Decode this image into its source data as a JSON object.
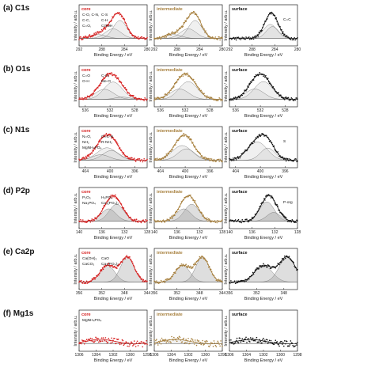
{
  "figure": {
    "conditions": [
      "core",
      "intermediate",
      "surface"
    ],
    "condition_colors": {
      "core": "#d62020",
      "intermediate": "#a8813f",
      "surface": "#111111"
    },
    "ylabel": "Intensity / arb.u.",
    "xlabel": "Binding Energy / eV"
  },
  "chart_data": [
    {
      "type": "line",
      "row": "(a) C1s",
      "x_ticks": [
        "292",
        "288",
        "284",
        "280"
      ],
      "xlim": [
        292,
        280
      ],
      "surface_x_ticks": [
        "292",
        "288",
        "284",
        "280"
      ],
      "components": [
        {
          "label": "C-O, C-N, C-S",
          "center": 286.0,
          "width": 1.4,
          "height": 0.35
        },
        {
          "label": "C-C, C-H",
          "center": 284.8,
          "width": 1.2,
          "height": 0.65
        },
        {
          "label": "C=O, COOH",
          "center": 288.6,
          "width": 1.4,
          "height": 0.14
        },
        {
          "label": "C=C",
          "center": 284.4,
          "width": 1.1,
          "height": 0.55
        }
      ],
      "annotations": {
        "core": [
          "C-O, C-N,",
          "C-S",
          "C-C,",
          "C-H",
          "C=O,",
          "COOH"
        ],
        "surface": [
          "C=C"
        ]
      }
    },
    {
      "type": "line",
      "row": "(b) O1s",
      "x_ticks": [
        "536",
        "532",
        "528"
      ],
      "xlim": [
        537,
        526
      ],
      "components": [
        {
          "label": "C=O",
          "center": 531.5,
          "width": 1.5,
          "height": 0.6
        },
        {
          "label": "C-O, O-H",
          "center": 532.9,
          "width": 1.5,
          "height": 0.35
        },
        {
          "label": "Me-O",
          "center": 530.0,
          "width": 1.2,
          "height": 0.08
        }
      ],
      "annotations": {
        "core": [
          "C=O",
          "C-O,",
          "O-H",
          "Me-O"
        ]
      }
    },
    {
      "type": "line",
      "row": "(c) N1s",
      "x_ticks": [
        "404",
        "400",
        "396"
      ],
      "xlim": [
        405,
        394
      ],
      "components": [
        {
          "label": "N=O, O=C-N",
          "center": 400.5,
          "width": 1.6,
          "height": 0.45
        },
        {
          "label": "NH2, R-NH2",
          "center": 399.8,
          "width": 1.4,
          "height": 0.35
        },
        {
          "label": "MgNH4PO4",
          "center": 401.5,
          "width": 1.4,
          "height": 0.2
        },
        {
          "label": "S",
          "center": 398.8,
          "width": 1.2,
          "height": 0.3
        }
      ],
      "annotations": {
        "core": [
          "N=O,",
          "O=C-N",
          "NH₂",
          "R-NH₂",
          "MgNH₄PO₄"
        ],
        "surface": [
          "S"
        ]
      }
    },
    {
      "type": "line",
      "row": "(d) P2p",
      "x_ticks": [
        "140",
        "136",
        "132",
        "128"
      ],
      "xlim": [
        140,
        128
      ],
      "components": [
        {
          "label": "Ca3(PO4)2",
          "center": 133.4,
          "width": 1.3,
          "height": 0.55
        },
        {
          "label": "P2O5, H3PO4, Na3PO4",
          "center": 134.8,
          "width": 1.3,
          "height": 0.4
        },
        {
          "label": "P-org",
          "center": 132.2,
          "width": 1.2,
          "height": 0.25
        }
      ],
      "annotations": {
        "core": [
          "P₂O₅",
          "H₃PO₄",
          "Na₃PO₄",
          "Ca₃(PO₄)₂"
        ],
        "surface": [
          "P-org"
        ]
      }
    },
    {
      "type": "line",
      "row": "(e) Ca2p",
      "x_ticks": [
        "356",
        "352",
        "348",
        "344"
      ],
      "xlim": [
        356,
        344
      ],
      "surface_x_ticks": [
        "356",
        "352",
        "348"
      ],
      "surface_xlim": [
        356,
        346
      ],
      "components": [
        {
          "label": "Ca(OH)2, CaO",
          "center": 351.0,
          "width": 1.3,
          "height": 0.4
        },
        {
          "label": "CaCO3, Ca3(PO4)2",
          "center": 347.5,
          "width": 1.2,
          "height": 0.6
        }
      ],
      "annotations": {
        "core": [
          "Ca(OH)₂",
          "CaO",
          "CaCO₃",
          "Ca₃(PO₄)₂"
        ]
      }
    },
    {
      "type": "line",
      "row": "(f) Mg1s",
      "x_ticks": [
        "1306",
        "1304",
        "1302",
        "1300",
        "1298"
      ],
      "xlim": [
        1306,
        1298
      ],
      "components": [
        {
          "label": "MgNH4PO4",
          "center": 1303.5,
          "width": 1.6,
          "height": 0.05
        }
      ],
      "annotations": {
        "core": [
          "MgNH₄PO₄"
        ]
      }
    }
  ]
}
